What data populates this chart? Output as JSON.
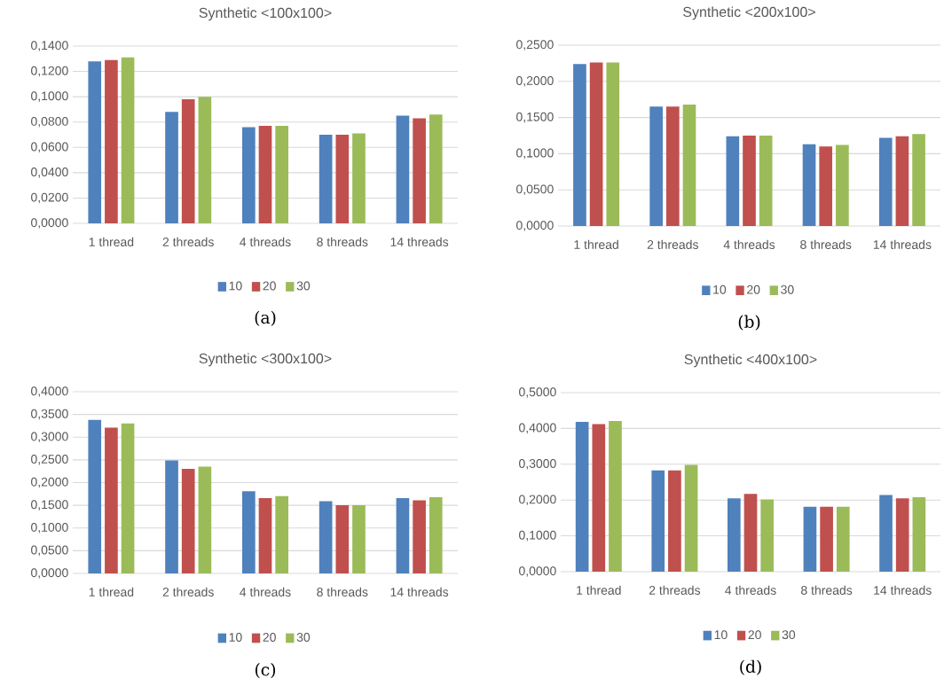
{
  "chart_data": [
    {
      "type": "bar",
      "title": "Synthetic <100x100>",
      "categories": [
        "1 thread",
        "2 threads",
        "4 threads",
        "8 threads",
        "14 threads"
      ],
      "series": [
        {
          "name": "10",
          "color": "#4f81bd",
          "values": [
            0.128,
            0.088,
            0.076,
            0.07,
            0.085
          ]
        },
        {
          "name": "20",
          "color": "#c0504d",
          "values": [
            0.129,
            0.098,
            0.077,
            0.07,
            0.083
          ]
        },
        {
          "name": "30",
          "color": "#9bbb59",
          "values": [
            0.131,
            0.1,
            0.077,
            0.071,
            0.086
          ]
        }
      ],
      "ylim": [
        0,
        0.14
      ],
      "yticks": [
        {
          "value": 0,
          "label": "0,0000"
        },
        {
          "value": 0.02,
          "label": "0,0200"
        },
        {
          "value": 0.04,
          "label": "0,0400"
        },
        {
          "value": 0.06,
          "label": "0,0600"
        },
        {
          "value": 0.08,
          "label": "0,0800"
        },
        {
          "value": 0.1,
          "label": "0,1000"
        },
        {
          "value": 0.12,
          "label": "0,1200"
        },
        {
          "value": 0.14,
          "label": "0,1400"
        }
      ],
      "grid": "y",
      "legend": "bottom",
      "annotations": [
        "(a)"
      ]
    },
    {
      "type": "bar",
      "title": "Synthetic <200x100>",
      "categories": [
        "1 thread",
        "2 threads",
        "4 threads",
        "8 threads",
        "14 threads"
      ],
      "series": [
        {
          "name": "10",
          "color": "#4f81bd",
          "values": [
            0.224,
            0.165,
            0.124,
            0.113,
            0.122
          ]
        },
        {
          "name": "20",
          "color": "#c0504d",
          "values": [
            0.226,
            0.165,
            0.125,
            0.11,
            0.124
          ]
        },
        {
          "name": "30",
          "color": "#9bbb59",
          "values": [
            0.226,
            0.168,
            0.125,
            0.112,
            0.127
          ]
        }
      ],
      "ylim": [
        0,
        0.25
      ],
      "yticks": [
        {
          "value": 0,
          "label": "0,0000"
        },
        {
          "value": 0.05,
          "label": "0,0500"
        },
        {
          "value": 0.1,
          "label": "0,1000"
        },
        {
          "value": 0.15,
          "label": "0,1500"
        },
        {
          "value": 0.2,
          "label": "0,2000"
        },
        {
          "value": 0.25,
          "label": "0,2500"
        }
      ],
      "grid": "y",
      "legend": "bottom",
      "annotations": [
        "(b)"
      ]
    },
    {
      "type": "bar",
      "title": "Synthetic <300x100>",
      "categories": [
        "1 thread",
        "2 threads",
        "4 threads",
        "8 threads",
        "14 threads"
      ],
      "series": [
        {
          "name": "10",
          "color": "#4f81bd",
          "values": [
            0.338,
            0.249,
            0.181,
            0.159,
            0.166
          ]
        },
        {
          "name": "20",
          "color": "#c0504d",
          "values": [
            0.321,
            0.23,
            0.166,
            0.15,
            0.161
          ]
        },
        {
          "name": "30",
          "color": "#9bbb59",
          "values": [
            0.33,
            0.235,
            0.17,
            0.15,
            0.168
          ]
        }
      ],
      "ylim": [
        0,
        0.4
      ],
      "yticks": [
        {
          "value": 0,
          "label": "0,0000"
        },
        {
          "value": 0.05,
          "label": "0,0500"
        },
        {
          "value": 0.1,
          "label": "0,1000"
        },
        {
          "value": 0.15,
          "label": "0,1500"
        },
        {
          "value": 0.2,
          "label": "0,2000"
        },
        {
          "value": 0.25,
          "label": "0,2500"
        },
        {
          "value": 0.3,
          "label": "0,3000"
        },
        {
          "value": 0.35,
          "label": "0,3500"
        },
        {
          "value": 0.4,
          "label": "0,4000"
        }
      ],
      "grid": "y",
      "legend": "bottom",
      "annotations": [
        "(c)"
      ]
    },
    {
      "type": "bar",
      "title": "Synthetic <400x100>",
      "categories": [
        "1 thread",
        "2 threads",
        "4 threads",
        "8 threads",
        "14 threads"
      ],
      "series": [
        {
          "name": "10",
          "color": "#4f81bd",
          "values": [
            0.418,
            0.283,
            0.205,
            0.181,
            0.214
          ]
        },
        {
          "name": "20",
          "color": "#c0504d",
          "values": [
            0.412,
            0.283,
            0.217,
            0.181,
            0.205
          ]
        },
        {
          "name": "30",
          "color": "#9bbb59",
          "values": [
            0.421,
            0.298,
            0.202,
            0.181,
            0.208
          ]
        }
      ],
      "ylim": [
        0,
        0.5
      ],
      "yticks": [
        {
          "value": 0,
          "label": "0,0000"
        },
        {
          "value": 0.1,
          "label": "0,1000"
        },
        {
          "value": 0.2,
          "label": "0,2000"
        },
        {
          "value": 0.3,
          "label": "0,3000"
        },
        {
          "value": 0.4,
          "label": "0,4000"
        },
        {
          "value": 0.5,
          "label": "0,5000"
        }
      ],
      "grid": "y",
      "legend": "bottom",
      "annotations": [
        "(d)"
      ]
    }
  ]
}
